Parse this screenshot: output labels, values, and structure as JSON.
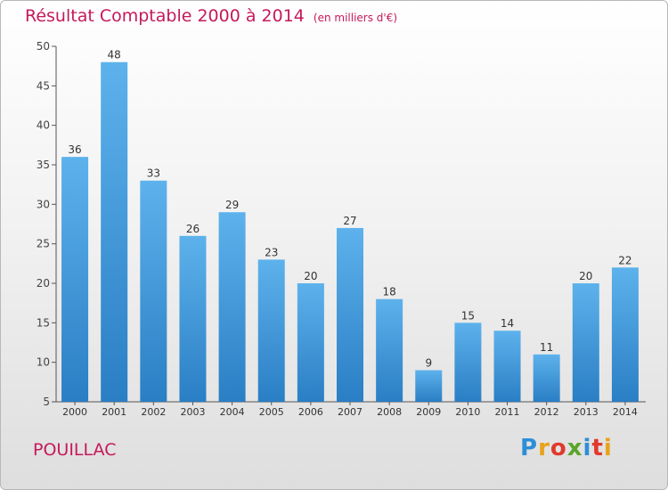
{
  "header": {
    "title": "Résultat Comptable 2000 à 2014",
    "subtitle": "(en milliers d'€)"
  },
  "footer": {
    "commune": "POUILLAC",
    "logo_text": "Proxiti",
    "logo_icon": "proxiti-logo"
  },
  "colors": {
    "title": "#c5195a",
    "bar_light": "#5db2ec",
    "bar_dark": "#2a7ec4",
    "axis": "#555555"
  },
  "chart_data": {
    "type": "bar",
    "categories": [
      "2000",
      "2001",
      "2002",
      "2003",
      "2004",
      "2005",
      "2006",
      "2007",
      "2008",
      "2009",
      "2010",
      "2011",
      "2012",
      "2013",
      "2014"
    ],
    "values": [
      36,
      48,
      33,
      26,
      29,
      23,
      20,
      27,
      18,
      9,
      15,
      14,
      11,
      20,
      22
    ],
    "ylim": [
      5,
      50
    ],
    "yticks": [
      5,
      10,
      15,
      20,
      25,
      30,
      35,
      40,
      45,
      50
    ],
    "grid": false,
    "legend": "none",
    "data_labels": true
  }
}
